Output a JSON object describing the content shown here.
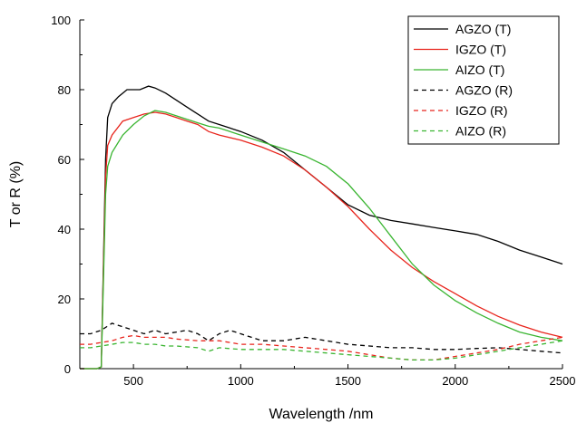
{
  "chart_data": {
    "type": "line",
    "title": "",
    "xlabel": "Wavelength /nm",
    "ylabel": "T or R (%)",
    "xlim": [
      250,
      2500
    ],
    "ylim": [
      0,
      100
    ],
    "x_ticks": [
      500,
      1000,
      1500,
      2000,
      2500
    ],
    "y_ticks": [
      0,
      20,
      40,
      60,
      80,
      100
    ],
    "grid": false,
    "legend_position": "top-right",
    "series": [
      {
        "name": "AGZO (T)",
        "color": "#000000",
        "dash": "solid",
        "points": [
          [
            250,
            0
          ],
          [
            330,
            0
          ],
          [
            350,
            0.5
          ],
          [
            360,
            30
          ],
          [
            370,
            60
          ],
          [
            380,
            72
          ],
          [
            400,
            76
          ],
          [
            430,
            78
          ],
          [
            470,
            80
          ],
          [
            500,
            80
          ],
          [
            530,
            80
          ],
          [
            570,
            81
          ],
          [
            600,
            80.5
          ],
          [
            650,
            79
          ],
          [
            700,
            77
          ],
          [
            750,
            75
          ],
          [
            800,
            73
          ],
          [
            850,
            71
          ],
          [
            900,
            70
          ],
          [
            1000,
            68
          ],
          [
            1100,
            65.5
          ],
          [
            1200,
            62
          ],
          [
            1300,
            57
          ],
          [
            1400,
            52
          ],
          [
            1500,
            47
          ],
          [
            1600,
            44
          ],
          [
            1700,
            42.5
          ],
          [
            1800,
            41.5
          ],
          [
            1900,
            40.5
          ],
          [
            2000,
            39.5
          ],
          [
            2100,
            38.5
          ],
          [
            2200,
            36.5
          ],
          [
            2300,
            34
          ],
          [
            2400,
            32
          ],
          [
            2500,
            30
          ]
        ]
      },
      {
        "name": "IGZO (T)",
        "color": "#e8251d",
        "dash": "solid",
        "points": [
          [
            250,
            0
          ],
          [
            330,
            0
          ],
          [
            350,
            0.5
          ],
          [
            360,
            28
          ],
          [
            370,
            55
          ],
          [
            380,
            64
          ],
          [
            400,
            67
          ],
          [
            450,
            71
          ],
          [
            500,
            72
          ],
          [
            550,
            73
          ],
          [
            600,
            73.5
          ],
          [
            650,
            73
          ],
          [
            700,
            72
          ],
          [
            750,
            71
          ],
          [
            800,
            70
          ],
          [
            850,
            68
          ],
          [
            900,
            67
          ],
          [
            1000,
            65.5
          ],
          [
            1100,
            63.5
          ],
          [
            1200,
            61
          ],
          [
            1300,
            57
          ],
          [
            1400,
            52
          ],
          [
            1500,
            46.5
          ],
          [
            1600,
            40
          ],
          [
            1700,
            34
          ],
          [
            1800,
            29
          ],
          [
            1900,
            25
          ],
          [
            2000,
            21.5
          ],
          [
            2100,
            18
          ],
          [
            2200,
            15
          ],
          [
            2300,
            12.5
          ],
          [
            2400,
            10.5
          ],
          [
            2500,
            9
          ]
        ]
      },
      {
        "name": "AIZO (T)",
        "color": "#3ab531",
        "dash": "solid",
        "points": [
          [
            250,
            0
          ],
          [
            330,
            0
          ],
          [
            350,
            0.5
          ],
          [
            360,
            25
          ],
          [
            370,
            50
          ],
          [
            380,
            58
          ],
          [
            400,
            62
          ],
          [
            450,
            67
          ],
          [
            500,
            70
          ],
          [
            550,
            72.5
          ],
          [
            600,
            74
          ],
          [
            650,
            73.5
          ],
          [
            700,
            72.5
          ],
          [
            750,
            71.5
          ],
          [
            800,
            70.5
          ],
          [
            850,
            69.5
          ],
          [
            900,
            69
          ],
          [
            1000,
            67
          ],
          [
            1100,
            65
          ],
          [
            1200,
            63
          ],
          [
            1300,
            61
          ],
          [
            1400,
            58
          ],
          [
            1500,
            53
          ],
          [
            1600,
            46
          ],
          [
            1700,
            38
          ],
          [
            1800,
            30
          ],
          [
            1900,
            24
          ],
          [
            2000,
            19.5
          ],
          [
            2100,
            16
          ],
          [
            2200,
            13
          ],
          [
            2300,
            10.5
          ],
          [
            2400,
            9
          ],
          [
            2500,
            8
          ]
        ]
      },
      {
        "name": "AGZO (R)",
        "color": "#000000",
        "dash": "dashed",
        "points": [
          [
            250,
            10
          ],
          [
            300,
            10
          ],
          [
            350,
            11
          ],
          [
            400,
            13
          ],
          [
            450,
            12
          ],
          [
            500,
            11
          ],
          [
            550,
            10
          ],
          [
            600,
            11
          ],
          [
            650,
            10
          ],
          [
            700,
            10.5
          ],
          [
            750,
            11
          ],
          [
            800,
            10
          ],
          [
            850,
            8
          ],
          [
            900,
            10
          ],
          [
            950,
            11
          ],
          [
            1000,
            10
          ],
          [
            1050,
            9
          ],
          [
            1100,
            8
          ],
          [
            1200,
            8
          ],
          [
            1300,
            9
          ],
          [
            1400,
            8
          ],
          [
            1500,
            7
          ],
          [
            1600,
            6.5
          ],
          [
            1700,
            6
          ],
          [
            1800,
            6
          ],
          [
            1900,
            5.5
          ],
          [
            2000,
            5.5
          ],
          [
            2100,
            5.8
          ],
          [
            2200,
            6
          ],
          [
            2300,
            5.5
          ],
          [
            2400,
            5
          ],
          [
            2500,
            4.5
          ]
        ]
      },
      {
        "name": "IGZO (R)",
        "color": "#e8251d",
        "dash": "dashed",
        "points": [
          [
            250,
            7
          ],
          [
            300,
            7
          ],
          [
            350,
            7.5
          ],
          [
            400,
            8
          ],
          [
            450,
            9
          ],
          [
            500,
            9.5
          ],
          [
            550,
            9
          ],
          [
            600,
            9
          ],
          [
            650,
            9
          ],
          [
            700,
            8.5
          ],
          [
            800,
            8
          ],
          [
            900,
            8
          ],
          [
            1000,
            7
          ],
          [
            1100,
            7
          ],
          [
            1200,
            6.5
          ],
          [
            1300,
            6
          ],
          [
            1400,
            5.5
          ],
          [
            1500,
            5
          ],
          [
            1600,
            4
          ],
          [
            1700,
            3
          ],
          [
            1800,
            2.5
          ],
          [
            1900,
            2.5
          ],
          [
            2000,
            3.5
          ],
          [
            2100,
            4.5
          ],
          [
            2200,
            5.5
          ],
          [
            2300,
            7
          ],
          [
            2400,
            8
          ],
          [
            2500,
            9
          ]
        ]
      },
      {
        "name": "AIZO (R)",
        "color": "#3ab531",
        "dash": "dashed",
        "points": [
          [
            250,
            6
          ],
          [
            300,
            6
          ],
          [
            350,
            6.5
          ],
          [
            400,
            7
          ],
          [
            450,
            7.5
          ],
          [
            500,
            7.5
          ],
          [
            550,
            7
          ],
          [
            600,
            7
          ],
          [
            650,
            6.5
          ],
          [
            700,
            6.5
          ],
          [
            800,
            6
          ],
          [
            850,
            5
          ],
          [
            900,
            6
          ],
          [
            1000,
            5.5
          ],
          [
            1100,
            5.5
          ],
          [
            1200,
            5.5
          ],
          [
            1300,
            5
          ],
          [
            1400,
            4.5
          ],
          [
            1500,
            4
          ],
          [
            1600,
            3.5
          ],
          [
            1700,
            3
          ],
          [
            1800,
            2.5
          ],
          [
            1900,
            2.5
          ],
          [
            2000,
            3
          ],
          [
            2100,
            4
          ],
          [
            2200,
            5
          ],
          [
            2300,
            6
          ],
          [
            2400,
            7
          ],
          [
            2500,
            8
          ]
        ]
      }
    ]
  }
}
